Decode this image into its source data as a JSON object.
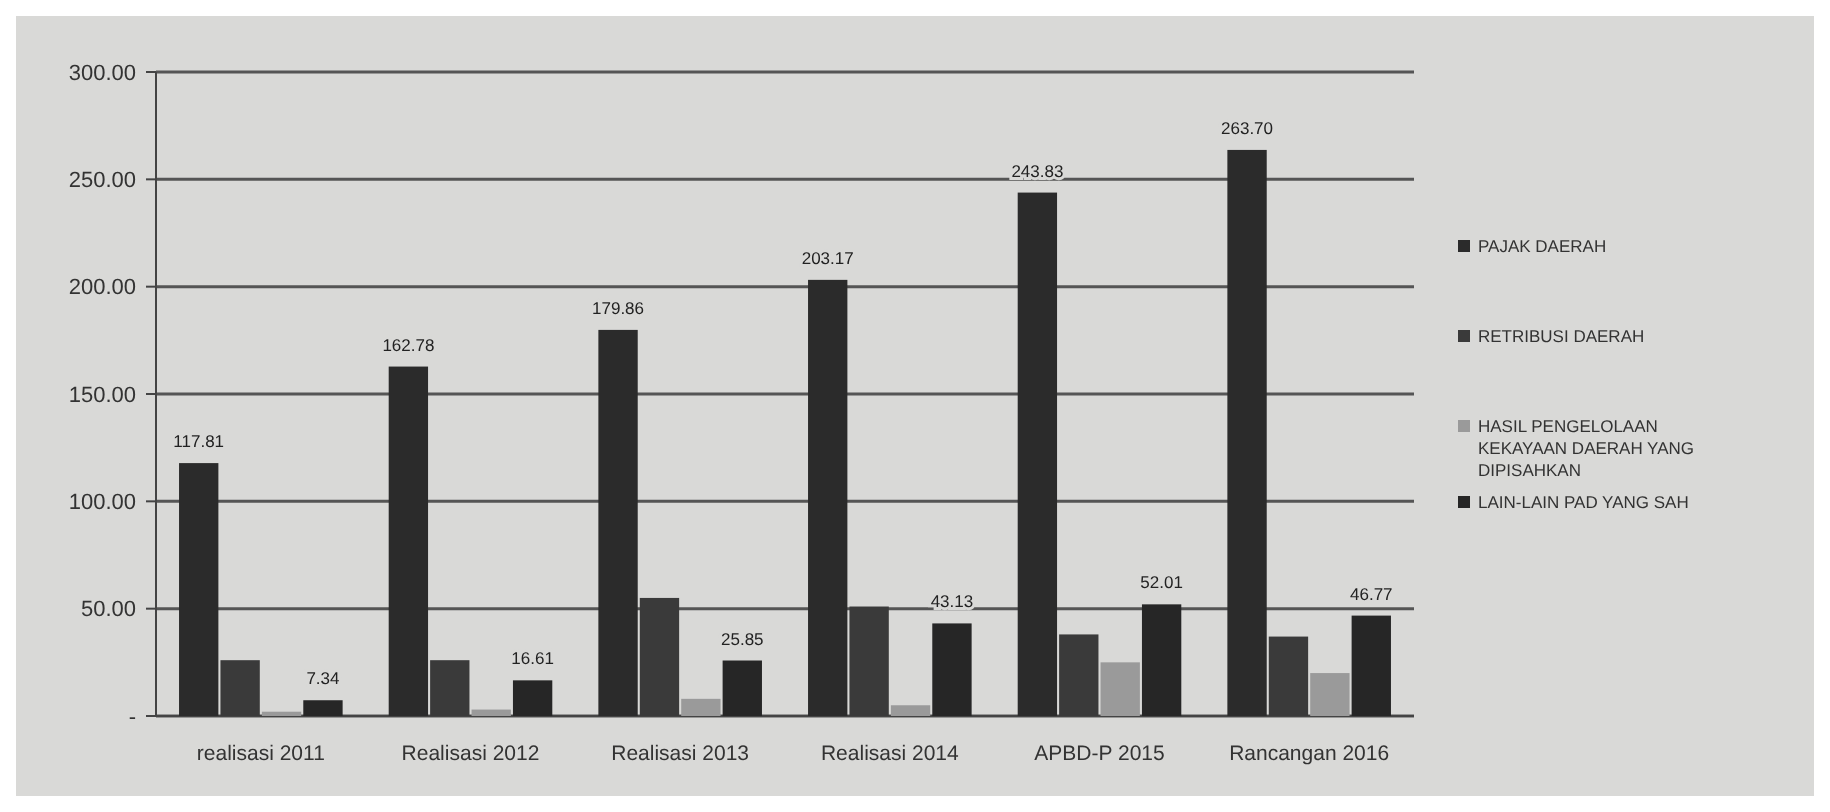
{
  "chart_data": {
    "type": "bar",
    "categories": [
      "realisasi 2011",
      "Realisasi 2012",
      "Realisasi 2013",
      "Realisasi 2014",
      "APBD-P 2015",
      "Rancangan 2016"
    ],
    "series": [
      {
        "name": "PAJAK DAERAH",
        "color": "#2b2b2b",
        "values": [
          117.81,
          162.78,
          179.86,
          203.17,
          243.83,
          263.7
        ],
        "value_labels": [
          "117.81",
          "162.78",
          "179.86",
          "203.17",
          "243.83",
          "263.70"
        ]
      },
      {
        "name": "RETRIBUSI DAERAH",
        "color": "#3a3a3a",
        "values": [
          26,
          26,
          55,
          51,
          38,
          37
        ]
      },
      {
        "name": "HASIL PENGELOLAAN KEKAYAAN DAERAH YANG DIPISAHKAN",
        "color": "#9a9a9a",
        "values": [
          2,
          3,
          8,
          5,
          25,
          20
        ]
      },
      {
        "name": "LAIN-LAIN PAD YANG SAH",
        "color": "#262626",
        "values": [
          7.34,
          16.61,
          25.85,
          43.13,
          52.01,
          46.77
        ],
        "value_labels": [
          "7.34",
          "16.61",
          "25.85",
          "43.13",
          "52.01",
          "46.77"
        ]
      }
    ],
    "ylim": [
      0,
      300
    ],
    "yticks": [
      {
        "value": 0,
        "label": "-"
      },
      {
        "value": 50,
        "label": "50.00"
      },
      {
        "value": 100,
        "label": "100.00"
      },
      {
        "value": 150,
        "label": "150.00"
      },
      {
        "value": 200,
        "label": "200.00"
      },
      {
        "value": 250,
        "label": "250.00"
      },
      {
        "value": 300,
        "label": "300.00"
      }
    ],
    "grid": "y",
    "legend": "right"
  }
}
